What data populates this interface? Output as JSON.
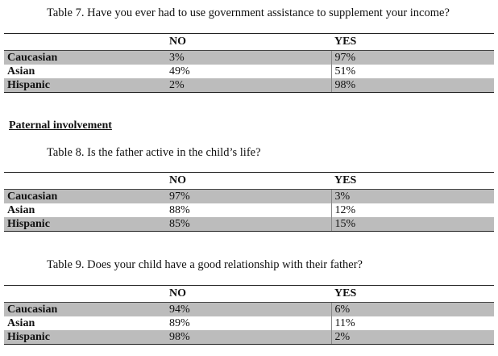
{
  "table7": {
    "caption": "Table 7. Have you ever had to use government assistance to supplement your income?",
    "columns": [
      "NO",
      "YES"
    ],
    "rows": [
      {
        "label": "Caucasian",
        "no": "3%",
        "yes": "97%"
      },
      {
        "label": "Asian",
        "no": "49%",
        "yes": "51%"
      },
      {
        "label": "Hispanic",
        "no": "2%",
        "yes": "98%"
      }
    ]
  },
  "section_heading": "Paternal involvement",
  "table8": {
    "caption": "Table 8. Is the father active in the child’s life?",
    "columns": [
      "NO",
      "YES"
    ],
    "rows": [
      {
        "label": "Caucasian",
        "no": "97%",
        "yes": "3%"
      },
      {
        "label": "Asian",
        "no": "88%",
        "yes": "12%"
      },
      {
        "label": "Hispanic",
        "no": "85%",
        "yes": "15%"
      }
    ]
  },
  "table9": {
    "caption": "Table 9. Does your child have a good relationship with their father?",
    "columns": [
      "NO",
      "YES"
    ],
    "rows": [
      {
        "label": "Caucasian",
        "no": "94%",
        "yes": "6%"
      },
      {
        "label": "Asian",
        "no": "89%",
        "yes": "11%"
      },
      {
        "label": "Hispanic",
        "no": "98%",
        "yes": "2%"
      }
    ]
  }
}
